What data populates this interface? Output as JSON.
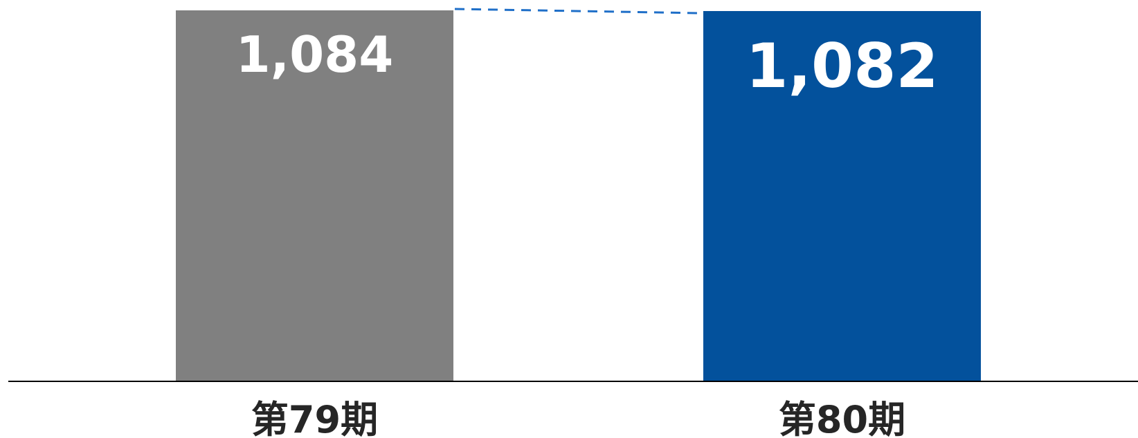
{
  "chart_data": {
    "type": "bar",
    "categories": [
      "第79期",
      "第80期"
    ],
    "values": [
      1084,
      1082
    ],
    "value_labels": [
      "1,084",
      "1,082"
    ],
    "colors": {
      "bar_79": "#808080",
      "bar_80": "#03519C",
      "connector": "#1F6FC8",
      "axis": "#000000",
      "value_text": "#FFFFFF",
      "category_text": "#262626"
    },
    "connector_style": "dashed",
    "grid": false,
    "legend": "none"
  }
}
